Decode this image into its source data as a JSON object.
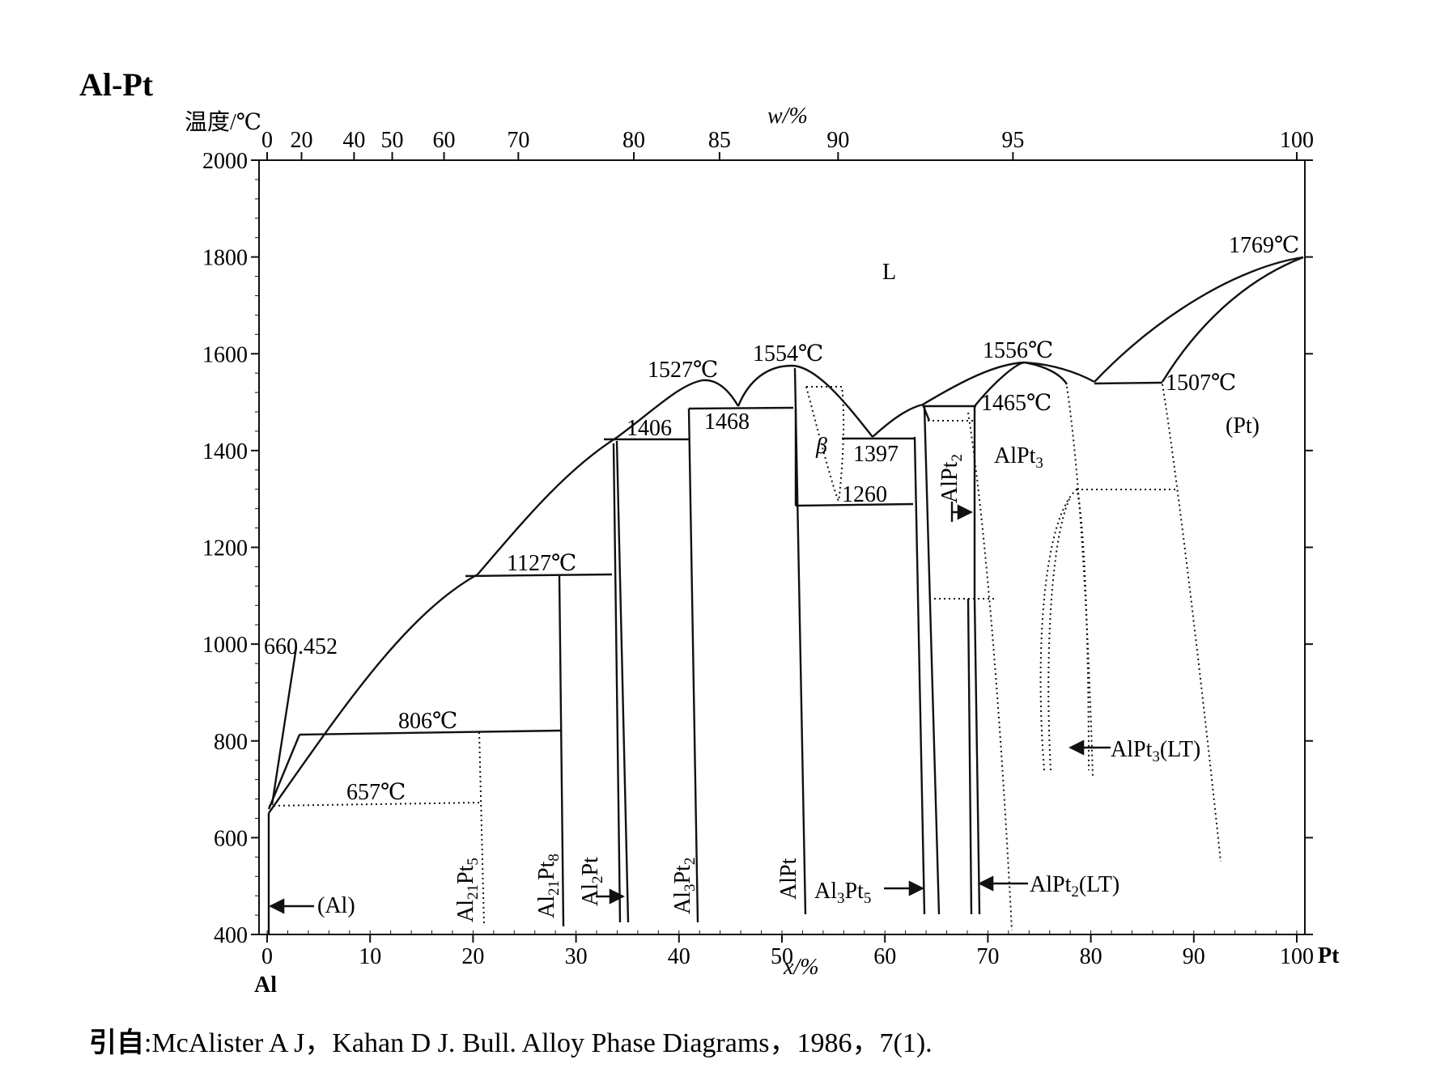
{
  "title": "Al-Pt",
  "axes": {
    "y_label": "温度/℃",
    "top_label": "w/%",
    "bottom_label": "x/%",
    "left_element": "Al",
    "right_element": "Pt",
    "y_ticks": [
      "2000",
      "1800",
      "1600",
      "1400",
      "1200",
      "1000",
      "800",
      "600",
      "400"
    ],
    "x_ticks": [
      "0",
      "10",
      "20",
      "30",
      "40",
      "50",
      "60",
      "70",
      "80",
      "90",
      "100"
    ],
    "w_ticks": [
      "0",
      "20",
      "40",
      "50",
      "60",
      "70",
      "80",
      "85",
      "90",
      "95",
      "100"
    ]
  },
  "labels": {
    "liquid": "L",
    "al_melt": "660.452",
    "pt_melt": "1769℃",
    "t1527": "1527℃",
    "t1554": "1554℃",
    "t1556": "1556℃",
    "t1507": "1507℃",
    "t1465": "1465℃",
    "t1406": "1406",
    "t1468": "1468",
    "t1397": "1397",
    "t1260": "1260",
    "t1127": "1127℃",
    "t806": "806℃",
    "t657": "657℃",
    "beta": "β",
    "al_phase": "(Al)",
    "pt_phase": "(Pt)"
  },
  "phases": {
    "al21pt5": {
      "base": "Al",
      "s1": "21",
      "mid": "Pt",
      "s2": "5"
    },
    "al21pt8": {
      "base": "Al",
      "s1": "21",
      "mid": "Pt",
      "s2": "8"
    },
    "al2pt": {
      "base": "Al",
      "s1": "2",
      "mid": "Pt",
      "s2": ""
    },
    "al3pt2": {
      "base": "Al",
      "s1": "3",
      "mid": "Pt",
      "s2": "2"
    },
    "alpt": {
      "base": "AlPt",
      "s1": "",
      "mid": "",
      "s2": ""
    },
    "al3pt5": {
      "base": "Al",
      "s1": "3",
      "mid": "Pt",
      "s2": "5"
    },
    "alpt2": {
      "base": "AlPt",
      "s1": "2",
      "mid": "",
      "s2": ""
    },
    "alpt3": {
      "base": "AlPt",
      "s1": "3",
      "mid": "",
      "s2": ""
    },
    "alpt3_lt": {
      "base": "AlPt",
      "s1": "3",
      "mid": "(LT)",
      "s2": ""
    },
    "alpt2_lt": {
      "base": "AlPt",
      "s1": "2",
      "mid": "(LT)",
      "s2": ""
    }
  },
  "citation": {
    "prefix": "引自",
    "text": ":McAlister A J，Kahan D J.  Bull.  Alloy Phase Diagrams，1986，7(1)."
  }
}
